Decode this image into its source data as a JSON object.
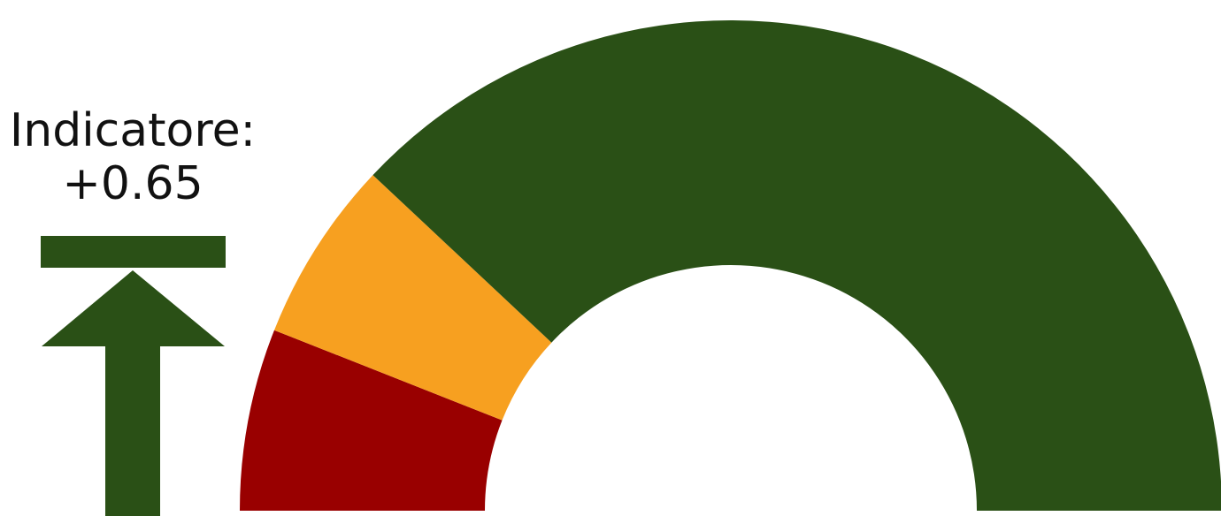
{
  "indicator": {
    "label": "Indicatore:",
    "value_text": "+0.65",
    "value": 0.65,
    "trend": "up",
    "trend_icon": "arrow-up-to-bar-icon"
  },
  "chart_data": {
    "type": "gauge",
    "title": "",
    "range": [
      0,
      1
    ],
    "series": [
      {
        "value": 0.12,
        "color": "#990000"
      },
      {
        "value": 0.12,
        "color": "#f7a020"
      },
      {
        "value": 0.76,
        "color": "#2a5016"
      }
    ],
    "colors": {
      "low": "#990000",
      "mid": "#f7a020",
      "high": "#2a5016",
      "arrow": "#2a5016"
    }
  }
}
